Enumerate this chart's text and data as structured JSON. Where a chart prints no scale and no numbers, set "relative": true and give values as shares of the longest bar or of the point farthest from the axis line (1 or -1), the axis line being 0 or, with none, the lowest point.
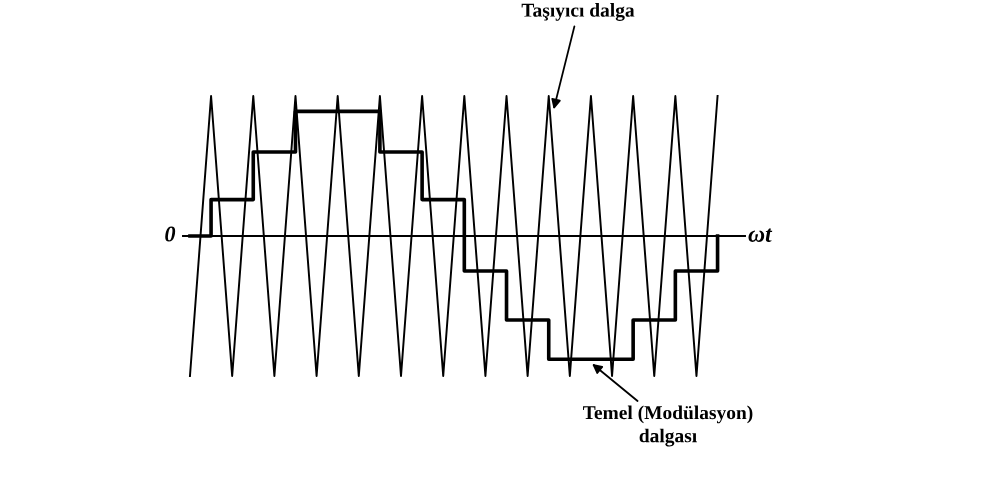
{
  "chart_data": {
    "type": "line",
    "relative": true,
    "xlabel": "ωt",
    "categories": [
      null,
      null,
      null,
      null,
      null,
      null,
      null,
      null,
      null,
      null,
      null,
      null,
      null,
      null,
      null,
      null,
      null,
      null,
      null,
      null,
      null,
      null,
      null,
      null,
      null,
      null
    ],
    "series": [
      {
        "color": "#000000",
        "values": [
          -1,
          1,
          -1,
          1,
          -1,
          1,
          -1,
          1,
          -1,
          1,
          -1,
          1,
          -1,
          1,
          -1,
          1,
          -1,
          1,
          -1,
          1,
          -1,
          1,
          -1,
          1,
          -1,
          1
        ]
      },
      {
        "type": "step",
        "color": "#000000",
        "values": [
          0,
          0.26,
          0.26,
          0.6,
          0.6,
          0.89,
          0.89,
          0.89,
          0.89,
          0.6,
          0.6,
          0.26,
          0.26,
          -0.25,
          -0.25,
          -0.6,
          -0.6,
          -0.88,
          -0.88,
          -0.88,
          -0.88,
          -0.6,
          -0.6,
          -0.25,
          -0.25,
          0
        ]
      }
    ],
    "annotations": [
      "0",
      "Taşıyıcı dalga",
      "Temel (Modülasyon)\ndalgası"
    ],
    "legend": false
  }
}
